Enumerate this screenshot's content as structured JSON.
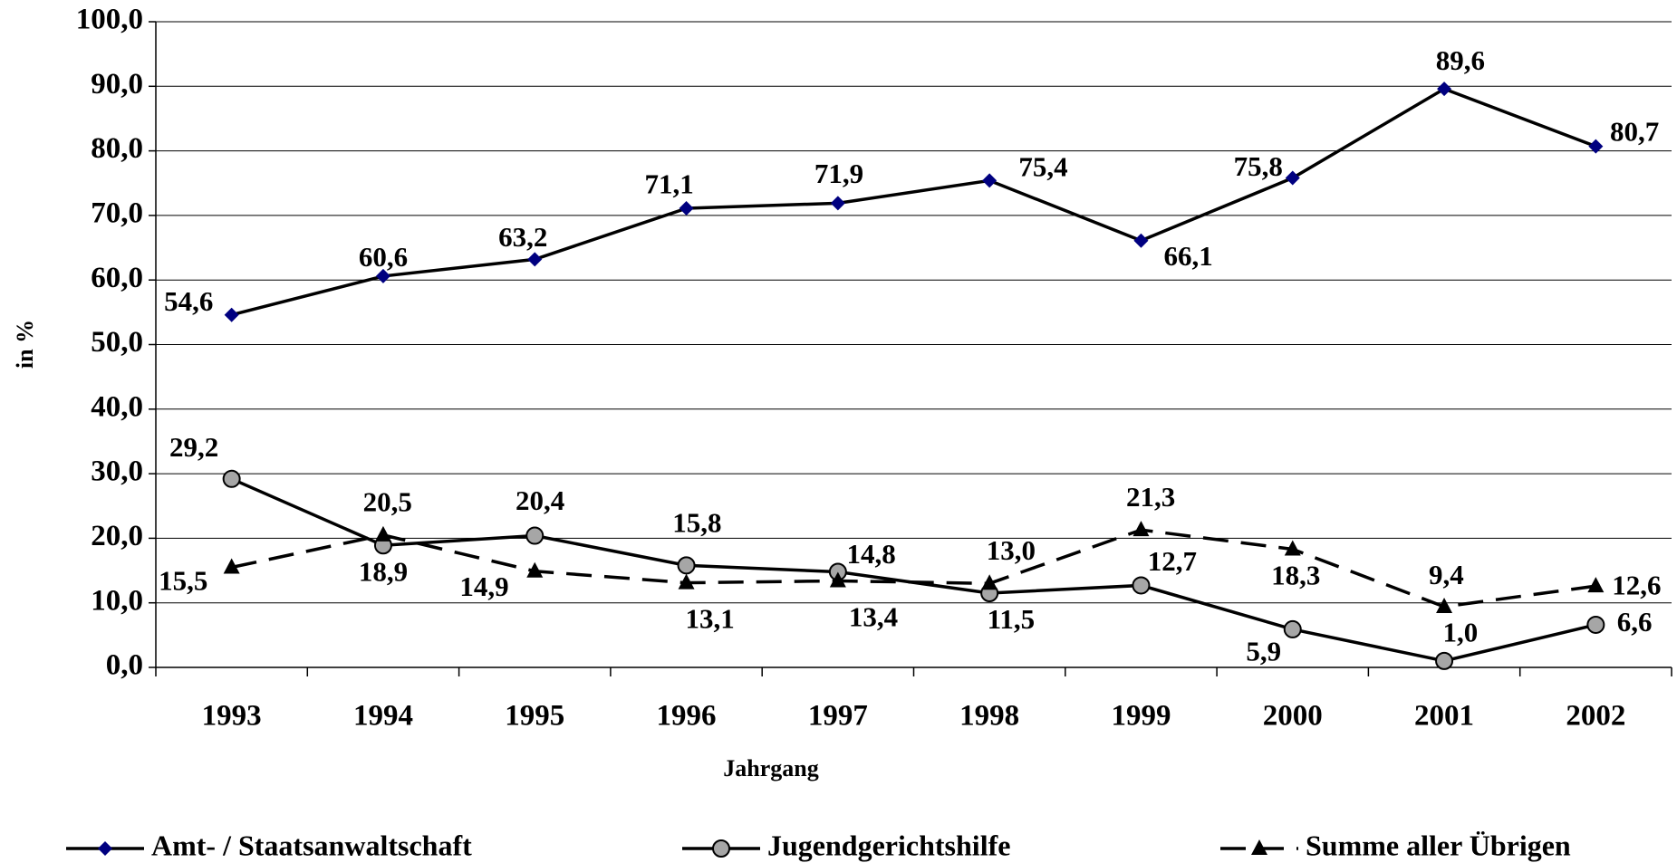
{
  "chart_data": {
    "type": "line",
    "x_label": "Jahrgang",
    "y_label": "in %",
    "categories": [
      "1993",
      "1994",
      "1995",
      "1996",
      "1997",
      "1998",
      "1999",
      "2000",
      "2001",
      "2002"
    ],
    "series": [
      {
        "name": "Amt- / Staatsanwaltschaft",
        "color": "#000080",
        "marker": "diamond",
        "line_style": "solid",
        "values": [
          54.6,
          60.6,
          63.2,
          71.1,
          71.9,
          75.4,
          66.1,
          75.8,
          89.6,
          80.7
        ],
        "value_labels": [
          "54,6",
          "60,6",
          "63,2",
          "71,1",
          "71,9",
          "75,4",
          "66,1",
          "75,8",
          "89,6",
          "80,7"
        ]
      },
      {
        "name": "Jugendgerichtshilfe",
        "color": "#a6a6a6",
        "marker": "circle",
        "line_style": "solid",
        "values": [
          29.2,
          18.9,
          20.4,
          15.8,
          14.8,
          11.5,
          12.7,
          5.9,
          1.0,
          6.6
        ],
        "value_labels": [
          "29,2",
          "18,9",
          "20,4",
          "15,8",
          "14,8",
          "11,5",
          "12,7",
          "5,9",
          "1,0",
          "6,6"
        ]
      },
      {
        "name": "Summe aller Übrigen",
        "color": "#000000",
        "marker": "triangle",
        "line_style": "dashed",
        "values": [
          15.5,
          20.5,
          14.9,
          13.1,
          13.4,
          13.0,
          21.3,
          18.3,
          9.4,
          12.6
        ],
        "value_labels": [
          "15,5",
          "20,5",
          "14,9",
          "13,1",
          "13,4",
          "13,0",
          "21,3",
          "18,3",
          "9,4",
          "12,6"
        ]
      }
    ],
    "ylim": [
      0,
      100
    ],
    "yticks": [
      {
        "value": 0,
        "label": "0,0"
      },
      {
        "value": 10,
        "label": "10,0"
      },
      {
        "value": 20,
        "label": "20,0"
      },
      {
        "value": 30,
        "label": "30,0"
      },
      {
        "value": 40,
        "label": "40,0"
      },
      {
        "value": 50,
        "label": "50,0"
      },
      {
        "value": 60,
        "label": "60,0"
      },
      {
        "value": 70,
        "label": "70,0"
      },
      {
        "value": 80,
        "label": "80,0"
      },
      {
        "value": 90,
        "label": "90,0"
      },
      {
        "value": 100,
        "label": "100,0"
      }
    ],
    "grid": true,
    "legend": "bottom"
  }
}
